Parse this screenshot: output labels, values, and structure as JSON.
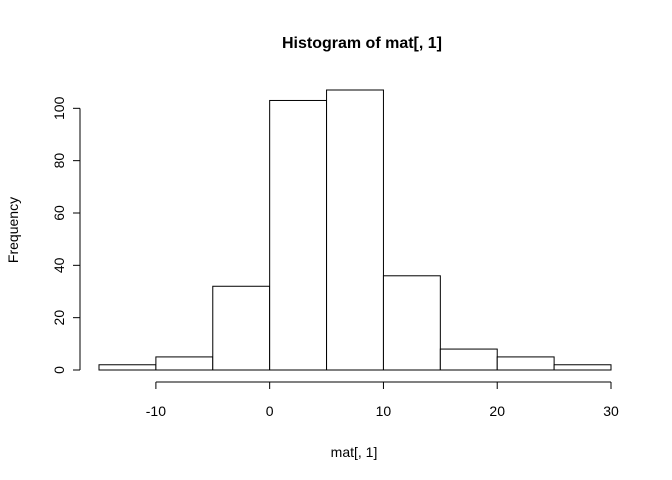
{
  "chart_data": {
    "type": "bar",
    "histogram": true,
    "title": "Histogram of mat[, 1]",
    "xlabel": "mat[, 1]",
    "ylabel": "Frequency",
    "bins": [
      {
        "start": -15,
        "end": -10,
        "count": 2
      },
      {
        "start": -10,
        "end": -5,
        "count": 5
      },
      {
        "start": -5,
        "end": 0,
        "count": 32
      },
      {
        "start": 0,
        "end": 5,
        "count": 103
      },
      {
        "start": 5,
        "end": 10,
        "count": 107
      },
      {
        "start": 10,
        "end": 15,
        "count": 36
      },
      {
        "start": 15,
        "end": 20,
        "count": 8
      },
      {
        "start": 20,
        "end": 25,
        "count": 5
      },
      {
        "start": 25,
        "end": 30,
        "count": 2
      }
    ],
    "x_ticks": [
      -10,
      0,
      10,
      20,
      30
    ],
    "x_tick_labels": [
      "-10",
      "0",
      "10",
      "20",
      "30"
    ],
    "y_ticks": [
      0,
      20,
      40,
      60,
      80,
      100
    ],
    "y_tick_labels": [
      "0",
      "20",
      "40",
      "60",
      "80",
      "100"
    ],
    "xlim": [
      -15,
      30
    ],
    "ylim": [
      0,
      107
    ],
    "grid": false,
    "bar_fill": "#ffffff",
    "bar_stroke": "#000000"
  }
}
